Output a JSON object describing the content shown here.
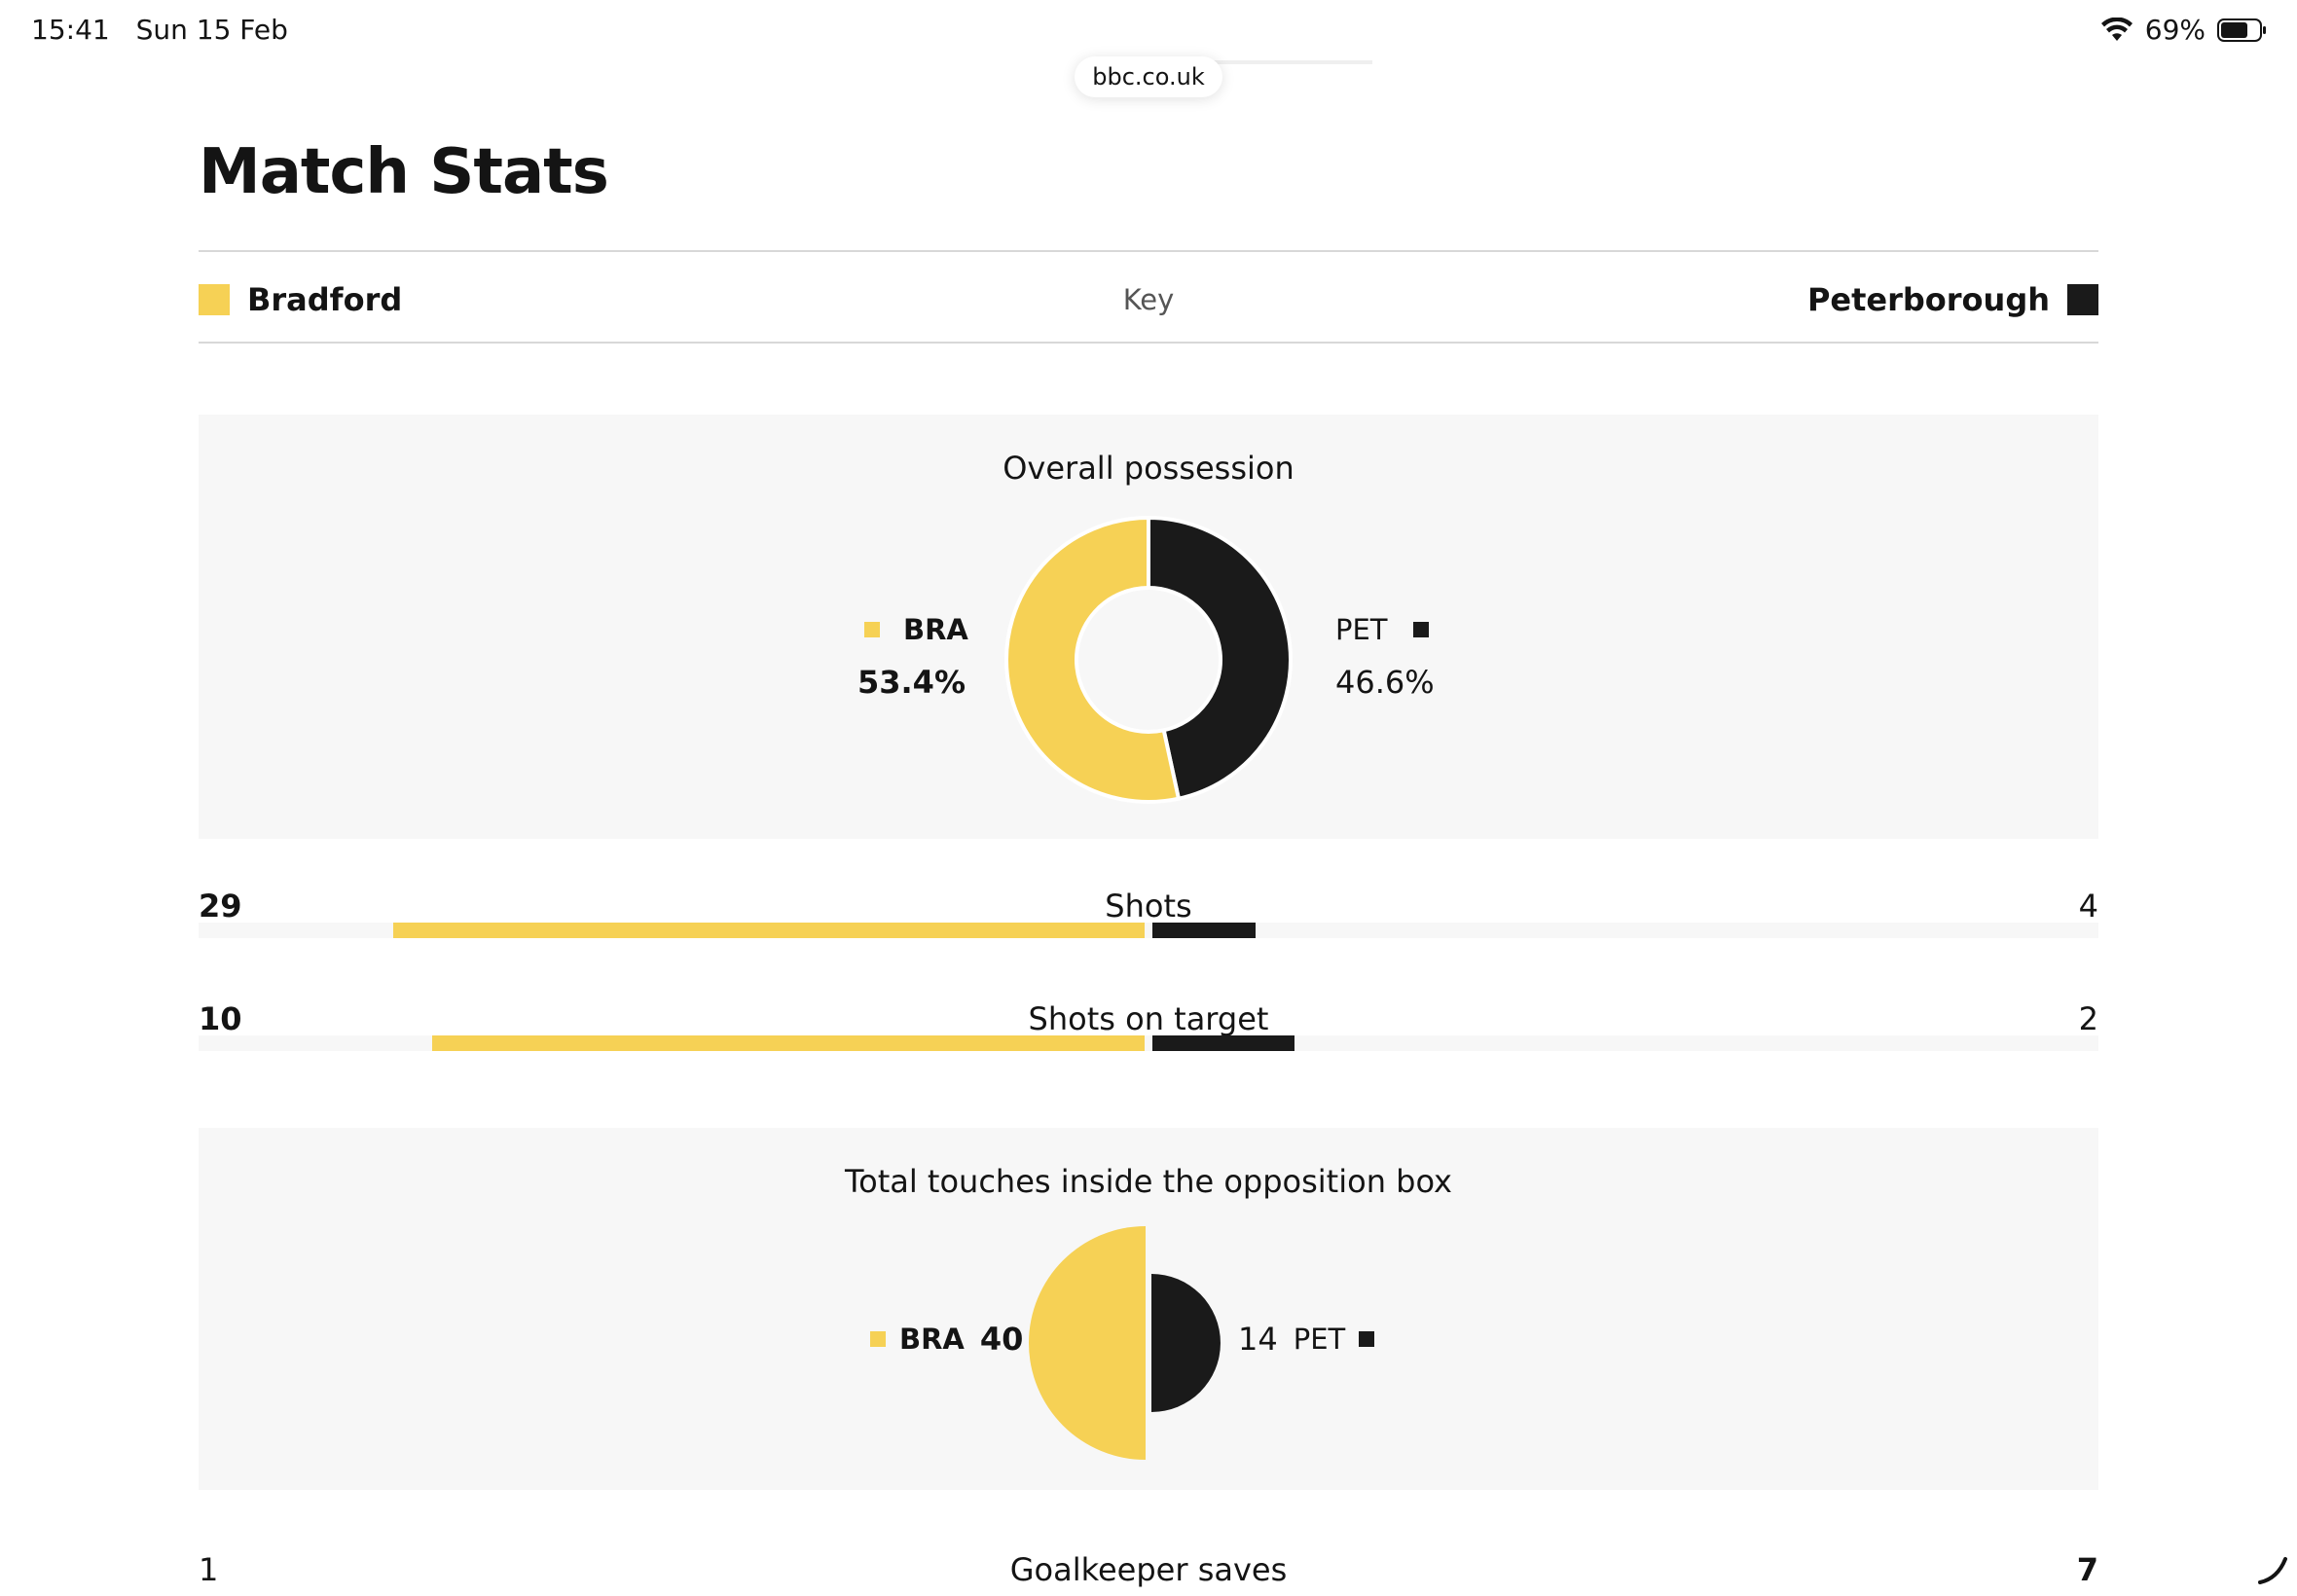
{
  "status_bar": {
    "time": "15:41",
    "date": "Sun 15 Feb",
    "battery": "69%",
    "icons": [
      "wifi-icon",
      "battery-icon"
    ]
  },
  "browser": {
    "url": "bbc.co.uk"
  },
  "page": {
    "title": "Match Stats"
  },
  "teams": {
    "home": {
      "name": "Bradford",
      "abbr": "BRA",
      "color": "#f6d155"
    },
    "away": {
      "name": "Peterborough",
      "abbr": "PET",
      "color": "#1a1a1a"
    },
    "key_label": "Key"
  },
  "possession": {
    "title": "Overall possession",
    "home_value": "53.4%",
    "away_value": "46.6%"
  },
  "bar_stats": [
    {
      "label": "Shots",
      "home": "29",
      "away": "4"
    },
    {
      "label": "Shots on target",
      "home": "10",
      "away": "2"
    }
  ],
  "touches": {
    "title": "Total touches inside the opposition box",
    "home_value": "40",
    "away_value": "14"
  },
  "goalkeeper_saves": {
    "label": "Goalkeeper saves",
    "home": "1",
    "away": "7"
  },
  "chart_data": [
    {
      "type": "pie",
      "title": "Overall possession",
      "categories": [
        "BRA",
        "PET"
      ],
      "values": [
        53.4,
        46.6
      ]
    },
    {
      "type": "bar",
      "title": "Shots",
      "categories": [
        "BRA",
        "PET"
      ],
      "values": [
        29,
        4
      ]
    },
    {
      "type": "bar",
      "title": "Shots on target",
      "categories": [
        "BRA",
        "PET"
      ],
      "values": [
        10,
        2
      ]
    },
    {
      "type": "pie",
      "title": "Total touches inside the opposition box",
      "categories": [
        "BRA",
        "PET"
      ],
      "values": [
        40,
        14
      ]
    },
    {
      "type": "bar",
      "title": "Goalkeeper saves",
      "categories": [
        "BRA",
        "PET"
      ],
      "values": [
        1,
        7
      ]
    }
  ]
}
